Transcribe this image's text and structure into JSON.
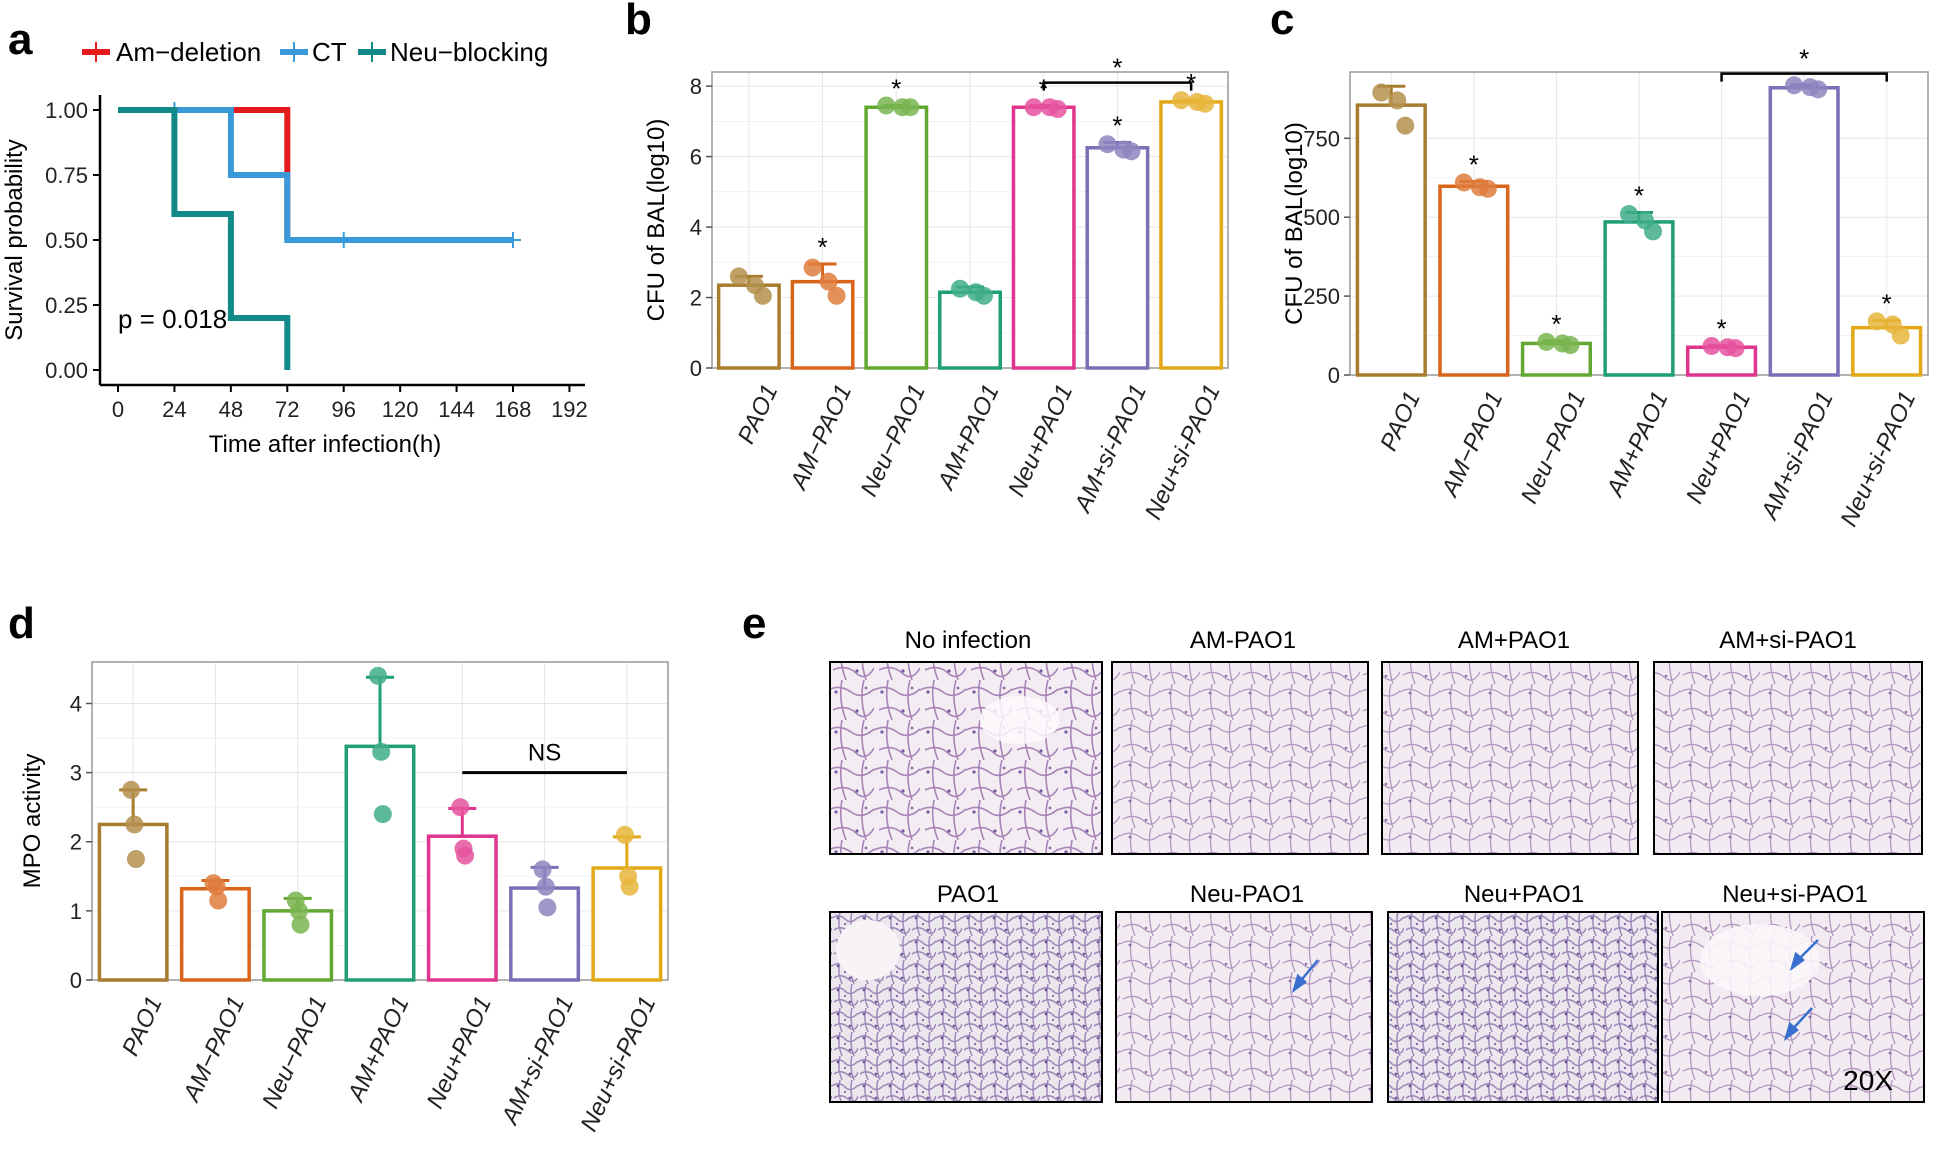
{
  "panels": {
    "a": "a",
    "b": "b",
    "c": "c",
    "d": "d",
    "e": "e"
  },
  "chart_data": [
    {
      "id": "a",
      "type": "line",
      "subtype": "survival",
      "xlabel": "Time after infection(h)",
      "ylabel": "Survival probability",
      "x_ticks": [
        "0",
        "24",
        "48",
        "72",
        "96",
        "120",
        "144",
        "168",
        "192"
      ],
      "y_ticks": [
        "0.00",
        "0.25",
        "0.50",
        "0.75",
        "1.00"
      ],
      "xlim": [
        0,
        192
      ],
      "ylim": [
        0,
        1
      ],
      "annotation": "p = 0.018",
      "series": [
        {
          "name": "Am−deletion",
          "color": "#e41a1c",
          "steps": [
            [
              0,
              1
            ],
            [
              72,
              1
            ],
            [
              72,
              0.5
            ]
          ],
          "censor": []
        },
        {
          "name": "CT",
          "color": "#3a9ad9",
          "steps": [
            [
              0,
              1
            ],
            [
              48,
              1
            ],
            [
              48,
              0.75
            ],
            [
              72,
              0.75
            ],
            [
              72,
              0.5
            ],
            [
              168,
              0.5
            ]
          ],
          "censor": [
            [
              24,
              1
            ],
            [
              96,
              0.5
            ],
            [
              168,
              0.5
            ]
          ]
        },
        {
          "name": "Neu−blocking",
          "color": "#138a8a",
          "steps": [
            [
              0,
              1
            ],
            [
              24,
              1
            ],
            [
              24,
              0.6
            ],
            [
              48,
              0.6
            ],
            [
              48,
              0.2
            ],
            [
              72,
              0.2
            ],
            [
              72,
              0
            ]
          ],
          "censor": []
        }
      ]
    },
    {
      "id": "b",
      "type": "bar",
      "ylabel": "CFU of BAL(log10)",
      "ylim": [
        0,
        8.4
      ],
      "y_ticks": [
        "0",
        "2",
        "4",
        "6",
        "8"
      ],
      "categories": [
        "PAO1",
        "AM−PAO1",
        "Neu−PAO1",
        "AM+PAO1",
        "Neu+PAO1",
        "AM+si-PAO1",
        "Neu+si-PAO1"
      ],
      "colors": [
        "#a77c2f",
        "#d9651b",
        "#63a832",
        "#1f9e77",
        "#e0358d",
        "#7b6fb5",
        "#e2a818"
      ],
      "values": [
        2.35,
        2.45,
        7.4,
        2.15,
        7.4,
        6.25,
        7.55
      ],
      "errors": [
        0.25,
        0.5,
        0.05,
        0.15,
        0.05,
        0.15,
        0.05
      ],
      "points": [
        [
          2.6,
          2.35,
          2.05
        ],
        [
          2.85,
          2.45,
          2.05
        ],
        [
          7.45,
          7.4,
          7.4
        ],
        [
          2.25,
          2.15,
          2.05
        ],
        [
          7.4,
          7.4,
          7.35
        ],
        [
          6.35,
          6.2,
          6.15
        ],
        [
          7.6,
          7.55,
          7.5
        ]
      ],
      "stars": [
        "",
        "*",
        "*",
        "",
        "*",
        "*",
        "*"
      ],
      "bracket": {
        "from": 4,
        "to": 6,
        "y": 8.1,
        "label": "*"
      }
    },
    {
      "id": "c",
      "type": "bar",
      "ylabel": "CFU of BAL(log10)",
      "ylim": [
        0,
        960
      ],
      "y_ticks": [
        "0",
        "250",
        "500",
        "750"
      ],
      "y_tick_values": [
        0,
        250,
        500,
        750
      ],
      "categories": [
        "PAO1",
        "AM−PAO1",
        "Neu−PAO1",
        "AM+PAO1",
        "Neu+PAO1",
        "AM+si-PAO1",
        "Neu+si-PAO1"
      ],
      "colors": [
        "#a77c2f",
        "#d9651b",
        "#63a832",
        "#1f9e77",
        "#e0358d",
        "#7b6fb5",
        "#e2a818"
      ],
      "values": [
        855,
        598,
        100,
        485,
        88,
        910,
        150
      ],
      "errors": [
        60,
        15,
        8,
        30,
        5,
        10,
        22
      ],
      "points": [
        [
          895,
          870,
          790
        ],
        [
          610,
          595,
          590
        ],
        [
          105,
          100,
          95
        ],
        [
          510,
          490,
          455
        ],
        [
          92,
          88,
          85
        ],
        [
          918,
          912,
          905
        ],
        [
          170,
          160,
          125
        ]
      ],
      "stars": [
        "",
        "*",
        "*",
        "*",
        "*",
        "",
        "*"
      ],
      "bracket": {
        "from": 4,
        "to": 6,
        "y": 955,
        "label": "*"
      }
    },
    {
      "id": "d",
      "type": "bar",
      "ylabel": "MPO activity",
      "ylim": [
        0,
        4.6
      ],
      "y_ticks": [
        "0",
        "1",
        "2",
        "3",
        "4"
      ],
      "categories": [
        "PAO1",
        "AM−PAO1",
        "Neu−PAO1",
        "AM+PAO1",
        "Neu+PAO1",
        "AM+si-PAO1",
        "Neu+si-PAO1"
      ],
      "colors": [
        "#a77c2f",
        "#d9651b",
        "#63a832",
        "#1f9e77",
        "#e0358d",
        "#7b6fb5",
        "#e2a818"
      ],
      "values": [
        2.25,
        1.32,
        1.0,
        3.38,
        2.08,
        1.33,
        1.62
      ],
      "errors": [
        0.5,
        0.12,
        0.18,
        1.0,
        0.4,
        0.3,
        0.45
      ],
      "points": [
        [
          2.75,
          2.25,
          1.75
        ],
        [
          1.4,
          1.35,
          1.15
        ],
        [
          1.15,
          1.0,
          0.8
        ],
        [
          4.4,
          3.3,
          2.4
        ],
        [
          2.5,
          1.9,
          1.8
        ],
        [
          1.6,
          1.35,
          1.05
        ],
        [
          2.1,
          1.5,
          1.35
        ]
      ],
      "stars": [
        "",
        "",
        "",
        "",
        "",
        "",
        ""
      ],
      "bracket": {
        "from": 4,
        "to": 6,
        "y": 3.0,
        "label": "NS",
        "plain": true
      }
    }
  ],
  "histology": {
    "labels": [
      "No infection",
      "AM-PAO1",
      "AM+PAO1",
      "AM+si-PAO1",
      "PAO1",
      "Neu-PAO1",
      "Neu+PAO1",
      "Neu+si-PAO1"
    ],
    "magnification": "20X"
  }
}
